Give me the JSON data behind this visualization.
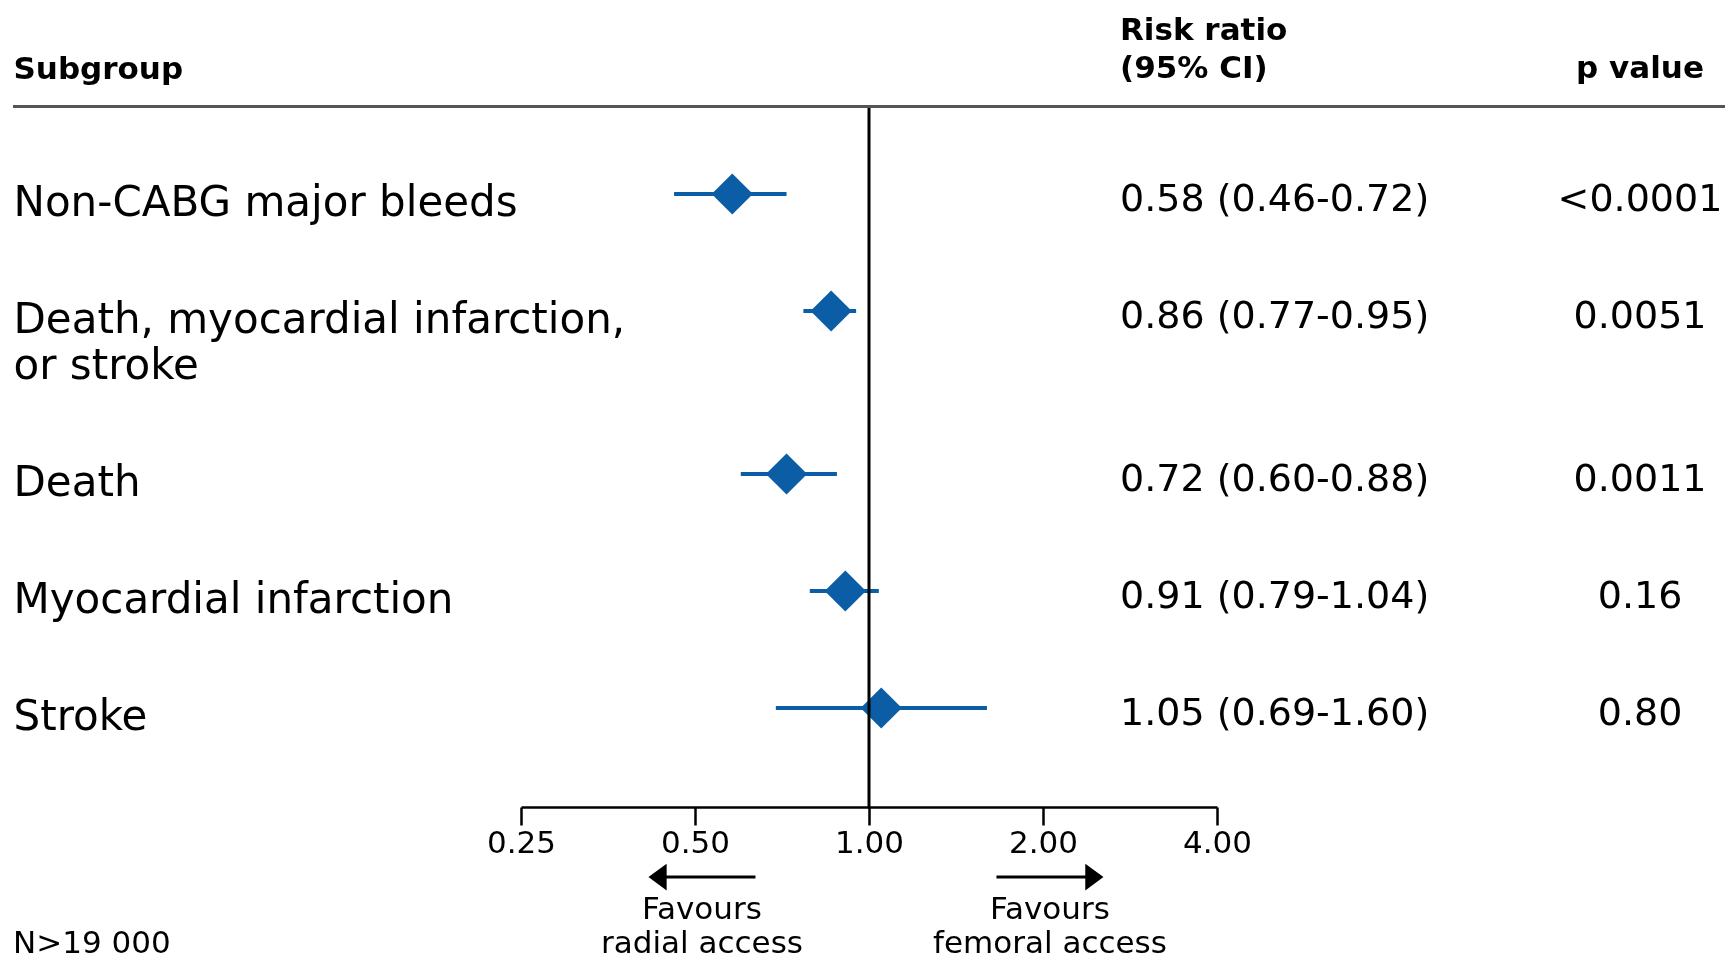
{
  "chart_data": {
    "type": "scatter",
    "orientation": "horizontal",
    "ylabel": "Subgroup",
    "categories": [
      "Non-CABG major bleeds",
      "Death, myocardial infarction, or stroke",
      "Death",
      "Myocardial infarction",
      "Stroke"
    ],
    "values": [
      0.58,
      0.86,
      0.72,
      0.91,
      1.05
    ],
    "errors": [
      [
        0.46,
        0.72
      ],
      [
        0.77,
        0.95
      ],
      [
        0.6,
        0.88
      ],
      [
        0.79,
        1.04
      ],
      [
        0.69,
        1.6
      ]
    ],
    "value_labels": [
      "0.58 (0.46-0.72)",
      "0.86 (0.77-0.95)",
      "0.72 (0.60-0.88)",
      "0.91 (0.79-1.04)",
      "1.05 (0.69-1.60)"
    ],
    "color": "#0b5ea6",
    "marker": "diamond",
    "log": "x",
    "xlim": [
      0.25,
      4
    ],
    "xticks": [
      0.25,
      {
        "value": 0.5,
        "label": "0.50"
      },
      {
        "value": 1,
        "label": "1.00"
      },
      {
        "value": 2,
        "label": "2.00"
      },
      {
        "value": 4,
        "label": "4.00"
      }
    ],
    "ref_lines": [
      {
        "axis": "x",
        "value": 1,
        "color": "#000000"
      }
    ],
    "annotations": [
      "Risk ratio (95% CI)",
      "p value",
      "<0.0001",
      "0.0051",
      "0.0011",
      "0.16",
      "0.80",
      "Favours radial access",
      "Favours femoral access",
      "N>19 000"
    ]
  }
}
